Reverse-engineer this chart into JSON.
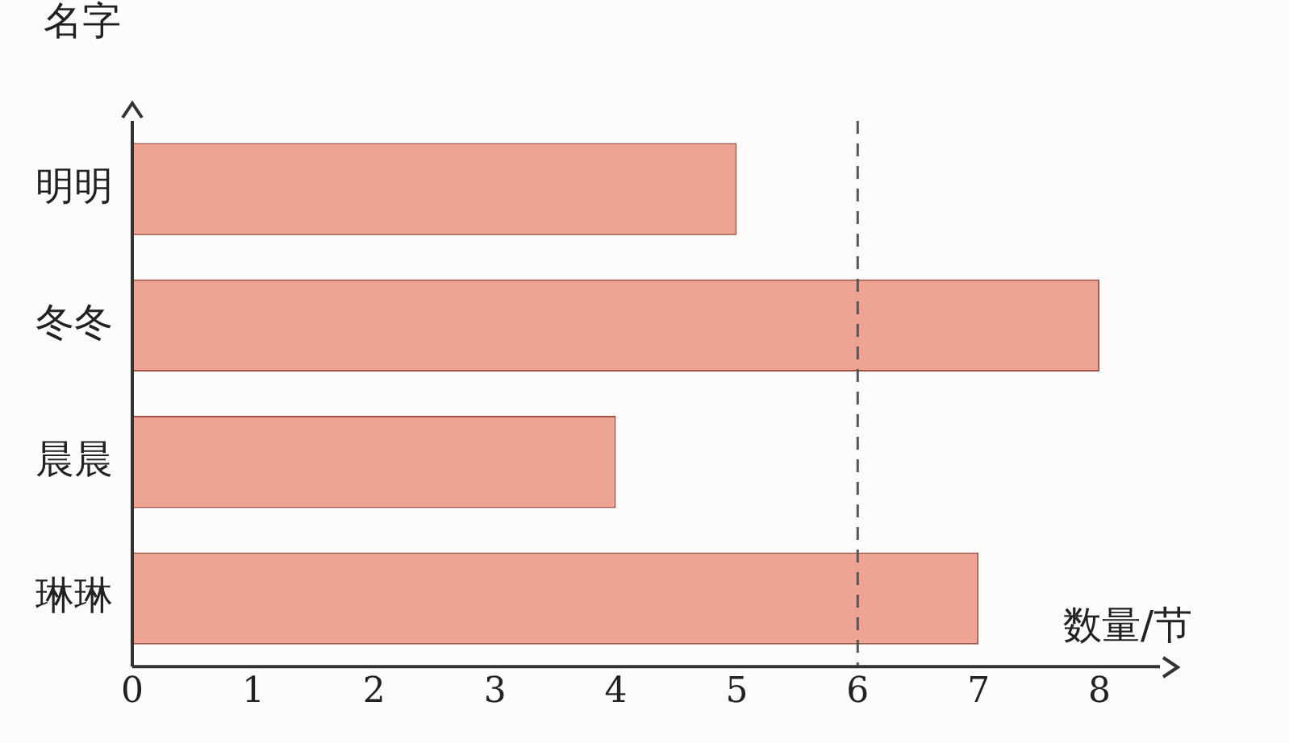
{
  "chart_data": {
    "type": "bar",
    "orientation": "horizontal",
    "xlabel": "数量/节",
    "ylabel": "名字",
    "categories": [
      "明明",
      "冬冬",
      "晨晨",
      "琳琳"
    ],
    "values": [
      5,
      8,
      4,
      7
    ],
    "color": "#eea393",
    "xlim": [
      0,
      8.5
    ],
    "xticks": [
      0,
      1,
      2,
      3,
      4,
      5,
      6,
      7,
      8
    ],
    "ref_lines": [
      {
        "axis": "x",
        "value": 6,
        "color": "#555555",
        "line_style": "dashed"
      }
    ],
    "grid": false,
    "legend": false
  }
}
